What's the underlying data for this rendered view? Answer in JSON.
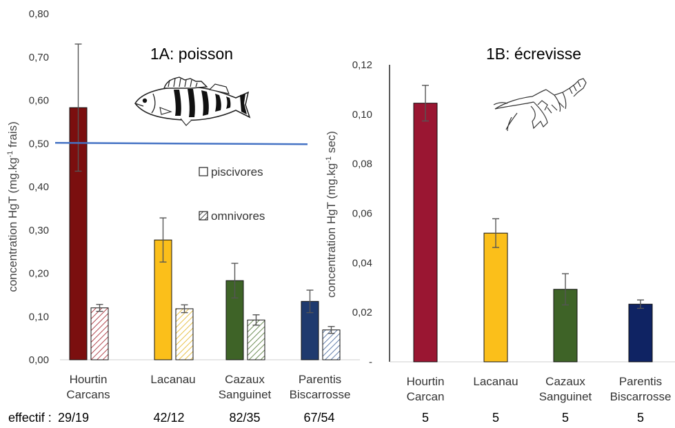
{
  "chart_data": [
    {
      "type": "bar",
      "title": "1A: poisson",
      "ylabel_main": "concentration HgT (mg.kg",
      "ylabel_sup": "-1",
      "ylabel_end": " frais)",
      "ylim": [
        0,
        0.8
      ],
      "yticks": [
        "0,00",
        "0,10",
        "0,20",
        "0,30",
        "0,40",
        "0,50",
        "0,60",
        "0,70",
        "0,80"
      ],
      "categories": [
        [
          "Hourtin",
          "Carcans"
        ],
        [
          "Lacanau",
          ""
        ],
        [
          "Cazaux",
          "Sanguinet"
        ],
        [
          "Parentis",
          "Biscarrosse"
        ]
      ],
      "series": [
        {
          "name": "piscivores",
          "values": [
            0.583,
            0.277,
            0.183,
            0.135
          ],
          "errors": [
            0.147,
            0.051,
            0.04,
            0.026
          ]
        },
        {
          "name": "omnivores",
          "values": [
            0.12,
            0.118,
            0.092,
            0.069
          ],
          "errors": [
            0.008,
            0.009,
            0.012,
            0.008
          ]
        }
      ],
      "reference_line": 0.5,
      "effectif_label": "effectif : ",
      "effectif": [
        "29/19",
        "42/12",
        "82/35",
        "67/54"
      ],
      "colors": [
        "#7b0f0f",
        "#fbbf1a",
        "#3e6327",
        "#1f3a6e"
      ],
      "grid": false,
      "legend_position": "right"
    },
    {
      "type": "bar",
      "title": "1B: écrevisse",
      "ylabel_main": "concentration HgT (mg.kg",
      "ylabel_sup": "-1",
      "ylabel_end": " sec)",
      "ylim": [
        0,
        0.12
      ],
      "yticks": [
        "-",
        "0,02",
        "0,04",
        "0,06",
        "0,08",
        "0,10",
        "0,12"
      ],
      "categories": [
        [
          "Hourtin",
          "Carcan"
        ],
        [
          "Lacanau",
          ""
        ],
        [
          "Cazaux",
          "Sanguinet"
        ],
        [
          "Parentis",
          "Biscarrosse"
        ]
      ],
      "values": [
        0.1045,
        0.052,
        0.0293,
        0.0233
      ],
      "errors": [
        0.0072,
        0.0058,
        0.0063,
        0.0017
      ],
      "effectif": [
        "5",
        "5",
        "5",
        "5"
      ],
      "colors": [
        "#9a1632",
        "#fbbf1a",
        "#3e6327",
        "#0f2363"
      ],
      "grid": false
    }
  ]
}
